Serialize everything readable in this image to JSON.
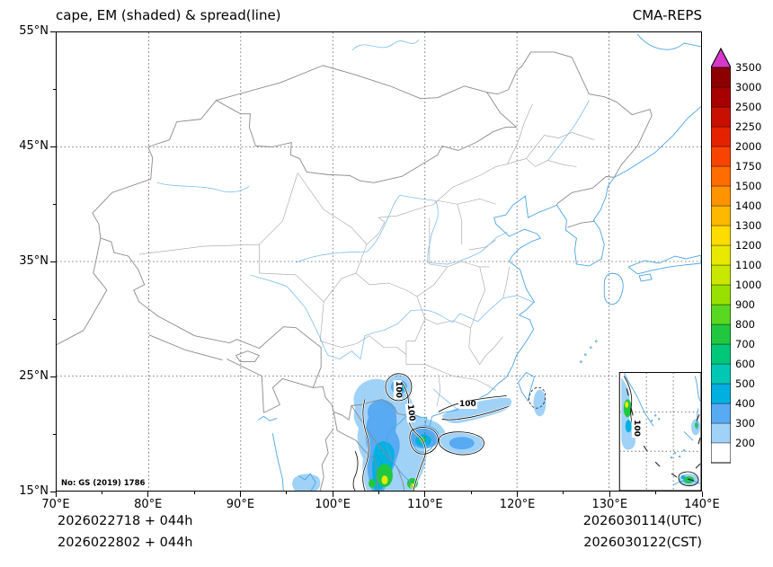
{
  "header": {
    "title": "cape, EM (shaded) & spread(line)",
    "model": "CMA-REPS"
  },
  "map_note": "No: GS (2019) 1786",
  "footer": {
    "left_line1": "2026022718 + 044h",
    "left_line2": "2026022802 + 044h",
    "right_line1": "2026030114(UTC)",
    "right_line2": "2026030122(CST)"
  },
  "axes": {
    "x": {
      "min": 70,
      "max": 140,
      "minor_step": 5,
      "tick_values": [
        70,
        80,
        90,
        100,
        110,
        120,
        130,
        140
      ],
      "tick_labels": [
        "70°E",
        "80°E",
        "90°E",
        "100°E",
        "110°E",
        "120°E",
        "130°E",
        "140°E"
      ]
    },
    "y": {
      "min": 15,
      "max": 55,
      "minor_step": 5,
      "tick_values": [
        15,
        25,
        35,
        45,
        55
      ],
      "tick_labels": [
        "15°N",
        "25°N",
        "35°N",
        "45°N",
        "55°N"
      ]
    }
  },
  "colorbar": {
    "levels": [
      200,
      300,
      400,
      500,
      600,
      700,
      800,
      900,
      1000,
      1100,
      1200,
      1300,
      1400,
      1500,
      1750,
      2000,
      2250,
      2500,
      3000,
      3500
    ],
    "colors": [
      "#a0d2f8",
      "#58aaf2",
      "#00b0e0",
      "#00c8b4",
      "#00c878",
      "#20c840",
      "#58d820",
      "#98e000",
      "#c8e800",
      "#e8e800",
      "#ffdc00",
      "#ffb800",
      "#ff9400",
      "#ff6c00",
      "#f84400",
      "#e42200",
      "#c81000",
      "#a80000",
      "#8c0000"
    ],
    "under_color": "#ffffff",
    "over_color": "#d838c8"
  },
  "contour_labels": [
    {
      "text": "100"
    },
    {
      "text": "100"
    },
    {
      "text": "100"
    },
    {
      "text": "100"
    }
  ],
  "chart_data": {
    "type": "heatmap",
    "title": "cape, EM (shaded) & spread(line)",
    "model": "CMA-REPS",
    "variable": "CAPE ensemble mean (shaded) and ensemble spread (black contour lines labeled 100)",
    "projection": "latitude-longitude map of China and surroundings with South China Sea inset",
    "x_axis": {
      "label": "longitude",
      "range_deg_e": [
        70,
        140
      ],
      "gridline_interval_deg": 10
    },
    "y_axis": {
      "label": "latitude",
      "range_deg_n": [
        15,
        55
      ],
      "gridline_interval_deg": 10
    },
    "shade_levels": [
      200,
      300,
      400,
      500,
      600,
      700,
      800,
      900,
      1000,
      1100,
      1200,
      1300,
      1400,
      1500,
      1750,
      2000,
      2250,
      2500,
      3000,
      3500
    ],
    "shade_colors": [
      "#a0d2f8",
      "#58aaf2",
      "#00b0e0",
      "#00c8b4",
      "#00c878",
      "#20c840",
      "#58d820",
      "#98e000",
      "#c8e800",
      "#e8e800",
      "#ffdc00",
      "#ffb800",
      "#ff9400",
      "#ff6c00",
      "#f84400",
      "#e42200",
      "#c81000",
      "#a80000",
      "#8c0000"
    ],
    "spread_contour_label": 100,
    "shaded_regions": [
      {
        "region": "Vietnam / Laos and Beibu Gulf (102-110E, 15-24N)",
        "em_range": "200-1200 with green/yellow cores near 15-17N"
      },
      {
        "region": "Hainan Island and Gulf of Tonkin (106-112E, 18-21N)",
        "em_range": "200-700"
      },
      {
        "region": "Guangxi (~107.5E, 23-25N)",
        "em_range": "200-400, spread contour 100"
      },
      {
        "region": "Coastal Guangdong / northern South China Sea (111-118E, 20-23N)",
        "em_range": "200-400, spread contour 100"
      },
      {
        "region": "Luzon Strait (~121E, 19-23N)",
        "em_range": "200-300"
      },
      {
        "region": "South China Sea (inset map)",
        "em_range": "200-800, spread contour 100"
      }
    ],
    "forecast": {
      "init": "2026022718 + 044h",
      "init_local": "2026022802 + 044h",
      "valid_utc": "2026030114(UTC)",
      "valid_cst": "2026030122(CST)"
    }
  }
}
